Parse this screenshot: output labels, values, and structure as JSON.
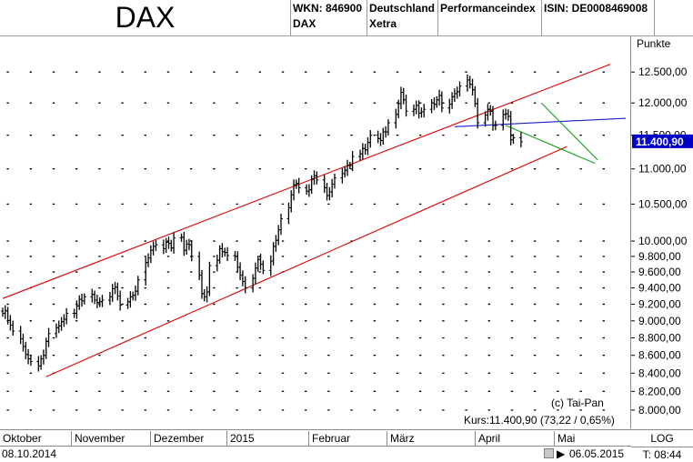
{
  "header": {
    "title": "DAX",
    "wkn": "WKN: 846900",
    "ticker": "DAX",
    "exchange_line1": "Deutschland",
    "exchange_line2": "Xetra",
    "index_type": "Performanceindex",
    "isin": "ISIN: DE0008469008"
  },
  "chart_data": {
    "type": "ohlc",
    "title": "DAX",
    "ylabel": "Punkte",
    "y_scale": "log",
    "ylim": [
      7800,
      12700
    ],
    "y_ticks": [
      "12.500,00",
      "12.000,00",
      "11.500,00",
      "11.000,00",
      "10.500,00",
      "10.000,00",
      "9.800,00",
      "9.600,00",
      "9.400,00",
      "9.200,00",
      "9.000,00",
      "8.800,00",
      "8.600,00",
      "8.400,00",
      "8.200,00",
      "8.000,00"
    ],
    "y_tick_values": [
      12500,
      12000,
      11500,
      11000,
      10500,
      10000,
      9800,
      9600,
      9400,
      9200,
      9000,
      8800,
      8600,
      8400,
      8200,
      8000
    ],
    "x_months": [
      "Oktober",
      "November",
      "Dezember",
      "2015",
      "Februar",
      "März",
      "April",
      "Mai"
    ],
    "x_month_dates": [
      "2014-10-01",
      "2014-11-01",
      "2014-12-01",
      "2015-01-01",
      "2015-02-01",
      "2015-03-01",
      "2015-04-01",
      "2015-05-01"
    ],
    "x_range": [
      "2014-09-29",
      "2015-05-31"
    ],
    "grid": true,
    "current_price_label": "11.400,90",
    "current_price": 11400.9,
    "copyright": "(c) Tai-Pan",
    "kurs_label": "Kurs:11.400,90 (73,22 / 0,65%)",
    "daily_closes": [
      9090,
      9120,
      9005,
      8950,
      8880,
      8790,
      8700,
      8610,
      8560,
      8530,
      8480,
      8560,
      8600,
      8760,
      8850,
      8920,
      8940,
      8990,
      9020,
      9090,
      9090,
      9180,
      9260,
      9240,
      9290,
      9320,
      9250,
      9220,
      9230,
      9250,
      9290,
      9390,
      9410,
      9300,
      9190,
      9230,
      9290,
      9310,
      9360,
      9500,
      9720,
      9780,
      9880,
      9930,
      9950,
      9900,
      9985,
      9970,
      9910,
      10040,
      10050,
      9880,
      9960,
      9950,
      9800,
      9560,
      9330,
      9290,
      9350,
      9680,
      9750,
      9900,
      9860,
      9850,
      9810,
      9800,
      9660,
      9560,
      9480,
      9400,
      9520,
      9650,
      9760,
      9700,
      9620,
      9740,
      9930,
      10010,
      10150,
      10300,
      10450,
      10630,
      10770,
      10790,
      10730,
      10680,
      10700,
      10850,
      10900,
      10840,
      10730,
      10620,
      10670,
      10780,
      10870,
      10930,
      10980,
      11050,
      11050,
      11180,
      11220,
      11300,
      11280,
      11390,
      11500,
      11450,
      11420,
      11550,
      11550,
      11690,
      11820,
      11990,
      12170,
      12050,
      11870,
      11900,
      11960,
      11840,
      11860,
      11900,
      12000,
      11980,
      12050,
      12120,
      11920,
      11980,
      12100,
      12150,
      12180,
      12270,
      12370,
      12300,
      12210,
      11990,
      11690,
      11810,
      11900,
      11870,
      11650,
      11650,
      11820,
      11830,
      11790,
      11430,
      11460,
      11400.9
    ],
    "trendlines": [
      {
        "color": "#dd0000",
        "from": [
          "2014-09-29",
          9270
        ],
        "to": [
          "2015-05-25",
          12630
        ]
      },
      {
        "color": "#dd0000",
        "from": [
          "2014-10-16",
          8360
        ],
        "to": [
          "2015-05-08",
          11330
        ]
      },
      {
        "color": "#1c1cc8",
        "from": [
          "2015-03-25",
          11630
        ],
        "to": [
          "2015-05-31",
          11760
        ]
      },
      {
        "color": "#1c9c1c",
        "from": [
          "2015-04-14",
          11650
        ],
        "to": [
          "2015-05-19",
          11080
        ]
      },
      {
        "color": "#1c9c1c",
        "from": [
          "2015-04-28",
          12000
        ],
        "to": [
          "2015-05-20",
          11130
        ]
      }
    ]
  },
  "statusbar": {
    "date_from": "08.10.2014",
    "date_to": "06.05.2015",
    "log_button": "LOG",
    "time": "T: 08:44"
  }
}
